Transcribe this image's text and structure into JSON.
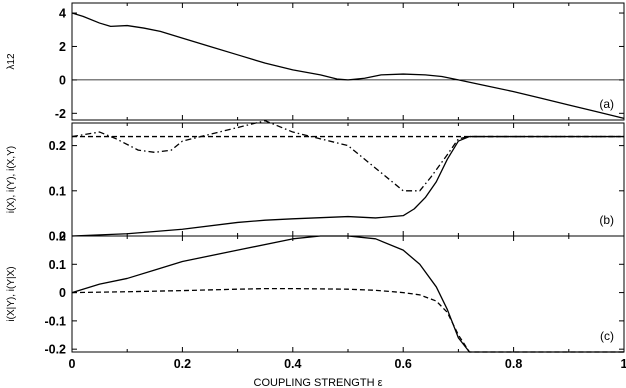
{
  "chart_data": [
    {
      "type": "line",
      "panel_label": "(a)",
      "ylabel": "λ12",
      "xlim": [
        0,
        1
      ],
      "ylim": [
        -2.4,
        4.6
      ],
      "yticks": [
        4,
        2,
        0,
        -2
      ],
      "yticklabels": [
        "4",
        "2",
        "0",
        "-2"
      ],
      "reference_lines": [
        0
      ],
      "series": [
        {
          "style": "solid",
          "x": [
            0,
            0.02,
            0.05,
            0.07,
            0.1,
            0.13,
            0.16,
            0.2,
            0.25,
            0.3,
            0.35,
            0.4,
            0.45,
            0.48,
            0.5,
            0.53,
            0.56,
            0.6,
            0.64,
            0.67,
            0.7,
            0.75,
            0.8,
            0.85,
            0.9,
            0.95,
            1.0
          ],
          "y": [
            4.0,
            3.8,
            3.4,
            3.2,
            3.25,
            3.1,
            2.9,
            2.5,
            2.0,
            1.5,
            1.0,
            0.6,
            0.3,
            0.05,
            0.0,
            0.1,
            0.3,
            0.35,
            0.3,
            0.2,
            0.0,
            -0.35,
            -0.7,
            -1.1,
            -1.5,
            -1.9,
            -2.3
          ]
        }
      ]
    },
    {
      "type": "line",
      "panel_label": "(b)",
      "ylabel": "i(X), i(Y), i(X,Y)",
      "xlim": [
        0,
        1
      ],
      "ylim": [
        0,
        0.25
      ],
      "yticks": [
        0,
        0.1,
        0.2
      ],
      "yticklabels": [
        "0",
        "0.1",
        "0.2"
      ],
      "series": [
        {
          "style": "dashed",
          "x": [
            0,
            1
          ],
          "y": [
            0.22,
            0.22
          ]
        },
        {
          "style": "dashdot",
          "x": [
            0,
            0.05,
            0.08,
            0.12,
            0.15,
            0.18,
            0.2,
            0.25,
            0.3,
            0.35,
            0.4,
            0.45,
            0.5,
            0.55,
            0.58,
            0.6,
            0.63,
            0.65,
            0.68,
            0.7,
            0.72,
            1.0
          ],
          "y": [
            0.22,
            0.23,
            0.215,
            0.19,
            0.185,
            0.19,
            0.21,
            0.225,
            0.24,
            0.255,
            0.23,
            0.215,
            0.2,
            0.15,
            0.12,
            0.1,
            0.1,
            0.13,
            0.18,
            0.215,
            0.22,
            0.22
          ]
        },
        {
          "style": "solid",
          "x": [
            0,
            0.1,
            0.2,
            0.3,
            0.35,
            0.4,
            0.5,
            0.55,
            0.6,
            0.62,
            0.64,
            0.66,
            0.68,
            0.7,
            0.72,
            1.0
          ],
          "y": [
            0.0,
            0.005,
            0.015,
            0.03,
            0.035,
            0.038,
            0.043,
            0.04,
            0.045,
            0.06,
            0.085,
            0.12,
            0.17,
            0.21,
            0.22,
            0.22
          ]
        }
      ]
    },
    {
      "type": "line",
      "panel_label": "(c)",
      "ylabel": "i(X|Y), i(Y|X)",
      "xlim": [
        0,
        1
      ],
      "ylim": [
        -0.21,
        0.2
      ],
      "yticks": [
        -0.2,
        -0.1,
        0,
        0.1,
        0.2
      ],
      "yticklabels": [
        "-0.2",
        "-0.1",
        "0",
        "0.1",
        "0.2"
      ],
      "xticks": [
        0,
        0.2,
        0.4,
        0.6,
        0.8,
        1
      ],
      "xticklabels": [
        "0",
        "0.2",
        "0.4",
        "0.6",
        "0.8",
        "1"
      ],
      "xlabel": "COUPLING STRENGTH ε",
      "series": [
        {
          "style": "solid",
          "x": [
            0,
            0.05,
            0.1,
            0.15,
            0.2,
            0.3,
            0.4,
            0.45,
            0.5,
            0.55,
            0.6,
            0.63,
            0.66,
            0.68,
            0.7,
            0.72,
            1.0
          ],
          "y": [
            0.0,
            0.03,
            0.05,
            0.08,
            0.11,
            0.15,
            0.19,
            0.2,
            0.2,
            0.19,
            0.15,
            0.1,
            0.02,
            -0.06,
            -0.16,
            -0.21,
            -0.21
          ]
        },
        {
          "style": "dashed",
          "x": [
            0,
            0.1,
            0.2,
            0.3,
            0.35,
            0.4,
            0.5,
            0.55,
            0.6,
            0.63,
            0.66,
            0.68,
            0.7,
            0.72,
            1.0
          ],
          "y": [
            0.0,
            0.003,
            0.007,
            0.012,
            0.014,
            0.014,
            0.012,
            0.008,
            0.0,
            -0.008,
            -0.03,
            -0.07,
            -0.15,
            -0.21,
            -0.21
          ]
        }
      ]
    }
  ]
}
